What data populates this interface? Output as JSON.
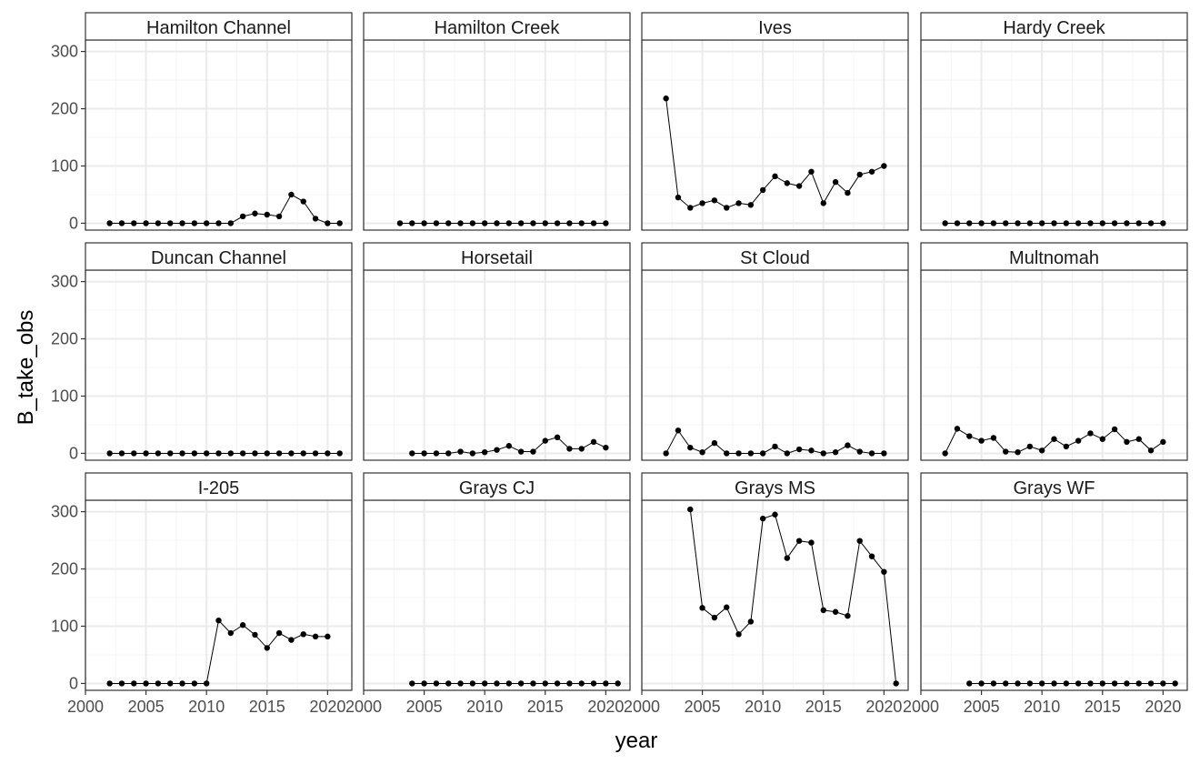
{
  "chart_data": {
    "type": "line",
    "layout": "facet-grid-3x4",
    "xlabel": "year",
    "ylabel": "B_take_obs",
    "xlim": [
      2000,
      2022
    ],
    "ylim": [
      -12,
      320
    ],
    "x_ticks": [
      2000,
      2005,
      2010,
      2015,
      2020
    ],
    "x_tick_labels": [
      "2000",
      "2005",
      "2010",
      "2015",
      "2020"
    ],
    "y_ticks": [
      0,
      100,
      200,
      300
    ],
    "y_tick_labels": [
      "0",
      "100",
      "200",
      "300"
    ],
    "grid": true,
    "legend": "none",
    "colors": {
      "line": "#000000",
      "point": "#000000",
      "grid_major": "#ebebeb",
      "grid_minor": "#f5f5f5",
      "panel_border": "#333333",
      "strip_fill": "#ffffff"
    },
    "panels": [
      {
        "title": "Hamilton Channel",
        "x": [
          2002,
          2003,
          2004,
          2005,
          2006,
          2007,
          2008,
          2009,
          2010,
          2011,
          2012,
          2013,
          2014,
          2015,
          2016,
          2017,
          2018,
          2019,
          2020,
          2021
        ],
        "values": [
          0,
          0,
          0,
          0,
          0,
          0,
          0,
          0,
          0,
          0,
          0,
          12,
          17,
          15,
          12,
          50,
          38,
          8,
          0,
          0
        ]
      },
      {
        "title": "Hamilton Creek",
        "x": [
          2003,
          2004,
          2005,
          2006,
          2007,
          2008,
          2009,
          2010,
          2011,
          2012,
          2013,
          2014,
          2015,
          2016,
          2017,
          2018,
          2019,
          2020
        ],
        "values": [
          0,
          0,
          0,
          0,
          0,
          0,
          0,
          0,
          0,
          0,
          0,
          0,
          0,
          0,
          0,
          0,
          0,
          0
        ]
      },
      {
        "title": "Ives",
        "x": [
          2002,
          2003,
          2004,
          2005,
          2006,
          2007,
          2008,
          2009,
          2010,
          2011,
          2012,
          2013,
          2014,
          2015,
          2016,
          2017,
          2018,
          2019,
          2020
        ],
        "values": [
          218,
          45,
          27,
          35,
          40,
          27,
          35,
          32,
          58,
          82,
          70,
          65,
          90,
          35,
          72,
          53,
          85,
          90,
          100
        ]
      },
      {
        "title": "Hardy Creek",
        "x": [
          2002,
          2003,
          2004,
          2005,
          2006,
          2007,
          2008,
          2009,
          2010,
          2011,
          2012,
          2013,
          2014,
          2015,
          2016,
          2017,
          2018,
          2019,
          2020
        ],
        "values": [
          0,
          0,
          0,
          0,
          0,
          0,
          0,
          0,
          0,
          0,
          0,
          0,
          0,
          0,
          0,
          0,
          0,
          0,
          0
        ]
      },
      {
        "title": "Duncan Channel",
        "x": [
          2002,
          2003,
          2004,
          2005,
          2006,
          2007,
          2008,
          2009,
          2010,
          2011,
          2012,
          2013,
          2014,
          2015,
          2016,
          2017,
          2018,
          2019,
          2020,
          2021
        ],
        "values": [
          0,
          0,
          0,
          0,
          0,
          0,
          0,
          0,
          0,
          0,
          0,
          0,
          0,
          0,
          0,
          0,
          0,
          0,
          0,
          0
        ]
      },
      {
        "title": "Horsetail",
        "x": [
          2004,
          2005,
          2006,
          2007,
          2008,
          2009,
          2010,
          2011,
          2012,
          2013,
          2014,
          2015,
          2016,
          2017,
          2018,
          2019,
          2020
        ],
        "values": [
          0,
          0,
          0,
          0,
          3,
          0,
          2,
          6,
          13,
          3,
          3,
          22,
          28,
          8,
          8,
          20,
          10
        ]
      },
      {
        "title": "St Cloud",
        "x": [
          2002,
          2003,
          2004,
          2005,
          2006,
          2007,
          2008,
          2009,
          2010,
          2011,
          2012,
          2013,
          2014,
          2015,
          2016,
          2017,
          2018,
          2019,
          2020
        ],
        "values": [
          0,
          40,
          10,
          2,
          18,
          0,
          0,
          0,
          0,
          12,
          0,
          7,
          5,
          0,
          2,
          14,
          3,
          0,
          0
        ]
      },
      {
        "title": "Multnomah",
        "x": [
          2002,
          2003,
          2004,
          2005,
          2006,
          2007,
          2008,
          2009,
          2010,
          2011,
          2012,
          2013,
          2014,
          2015,
          2016,
          2017,
          2018,
          2019,
          2020
        ],
        "values": [
          0,
          43,
          30,
          22,
          27,
          3,
          2,
          12,
          5,
          25,
          12,
          22,
          35,
          25,
          42,
          20,
          25,
          5,
          20
        ]
      },
      {
        "title": "I-205",
        "x": [
          2002,
          2003,
          2004,
          2005,
          2006,
          2007,
          2008,
          2009,
          2010,
          2011,
          2012,
          2013,
          2014,
          2015,
          2016,
          2017,
          2018,
          2019,
          2020
        ],
        "values": [
          0,
          0,
          0,
          0,
          0,
          0,
          0,
          0,
          0,
          110,
          88,
          102,
          85,
          62,
          88,
          76,
          86,
          82,
          82
        ]
      },
      {
        "title": "Grays CJ",
        "x": [
          2004,
          2005,
          2006,
          2007,
          2008,
          2009,
          2010,
          2011,
          2012,
          2013,
          2014,
          2015,
          2016,
          2017,
          2018,
          2019,
          2020,
          2021
        ],
        "values": [
          0,
          0,
          0,
          0,
          0,
          0,
          0,
          0,
          0,
          0,
          0,
          0,
          0,
          0,
          0,
          0,
          0,
          0
        ]
      },
      {
        "title": "Grays MS",
        "x": [
          2004,
          2005,
          2006,
          2007,
          2008,
          2009,
          2010,
          2011,
          2012,
          2013,
          2014,
          2015,
          2016,
          2017,
          2018,
          2019,
          2020,
          2021
        ],
        "values": [
          304,
          132,
          115,
          133,
          86,
          108,
          288,
          295,
          219,
          249,
          246,
          128,
          125,
          118,
          249,
          222,
          195,
          0
        ]
      },
      {
        "title": "Grays WF",
        "x": [
          2004,
          2005,
          2006,
          2007,
          2008,
          2009,
          2010,
          2011,
          2012,
          2013,
          2014,
          2015,
          2016,
          2017,
          2018,
          2019,
          2020,
          2021
        ],
        "values": [
          0,
          0,
          0,
          0,
          0,
          0,
          0,
          0,
          0,
          0,
          0,
          0,
          0,
          0,
          0,
          0,
          0,
          0
        ]
      }
    ]
  }
}
